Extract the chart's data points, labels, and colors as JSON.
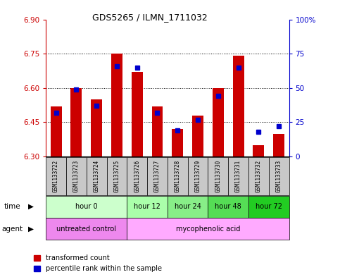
{
  "title": "GDS5265 / ILMN_1711032",
  "samples": [
    "GSM1133722",
    "GSM1133723",
    "GSM1133724",
    "GSM1133725",
    "GSM1133726",
    "GSM1133727",
    "GSM1133728",
    "GSM1133729",
    "GSM1133730",
    "GSM1133731",
    "GSM1133732",
    "GSM1133733"
  ],
  "red_values": [
    6.52,
    6.6,
    6.55,
    6.75,
    6.67,
    6.52,
    6.42,
    6.48,
    6.6,
    6.74,
    6.35,
    6.4
  ],
  "blue_values_pct": [
    32,
    49,
    37,
    66,
    65,
    32,
    19,
    27,
    44,
    65,
    18,
    22
  ],
  "y_min": 6.3,
  "y_max": 6.9,
  "y_ticks": [
    6.3,
    6.45,
    6.6,
    6.75,
    6.9
  ],
  "y2_ticks": [
    0,
    25,
    50,
    75,
    100
  ],
  "ytick_color": "#cc0000",
  "y2tick_color": "#0000cc",
  "bar_color": "#cc0000",
  "blue_marker_color": "#0000cc",
  "bar_width": 0.55,
  "time_groups": [
    {
      "label": "hour 0",
      "start": 0,
      "end": 3,
      "color": "#ccffcc"
    },
    {
      "label": "hour 12",
      "start": 4,
      "end": 5,
      "color": "#aaffaa"
    },
    {
      "label": "hour 24",
      "start": 6,
      "end": 7,
      "color": "#88ee88"
    },
    {
      "label": "hour 48",
      "start": 8,
      "end": 9,
      "color": "#55dd55"
    },
    {
      "label": "hour 72",
      "start": 10,
      "end": 11,
      "color": "#22cc22"
    }
  ],
  "agent_groups": [
    {
      "label": "untreated control",
      "start": 0,
      "end": 3,
      "color": "#ee88ee"
    },
    {
      "label": "mycophenolic acid",
      "start": 4,
      "end": 11,
      "color": "#ffaaff"
    }
  ],
  "legend_red": "transformed count",
  "legend_blue": "percentile rank within the sample",
  "tick_label_bg": "#c8c8c8",
  "plot_bg": "#ffffff"
}
